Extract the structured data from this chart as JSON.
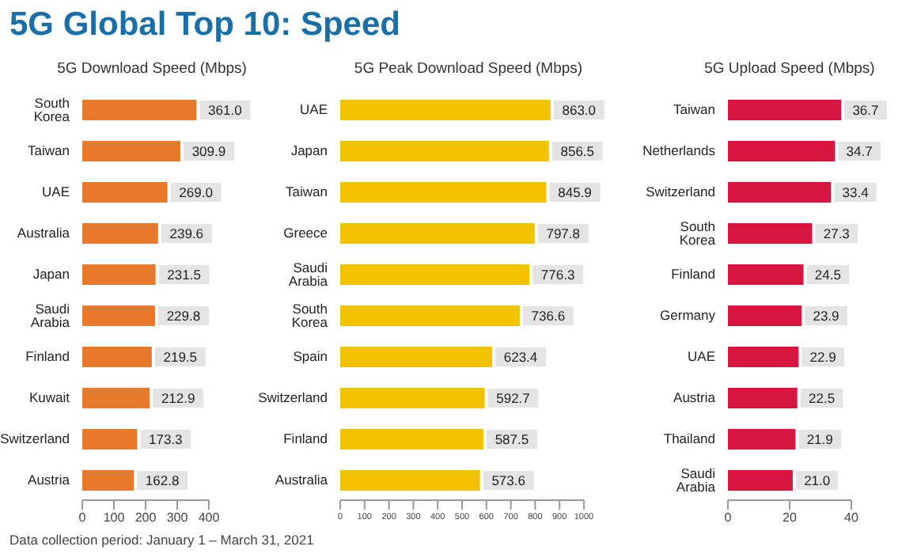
{
  "chart_data": [
    {
      "type": "bar",
      "orientation": "horizontal",
      "title": "5G Global Top 10: Speed",
      "subtitle": "5G Download Speed (Mbps)",
      "categories": [
        "South Korea",
        "Taiwan",
        "UAE",
        "Australia",
        "Japan",
        "Saudi Arabia",
        "Finland",
        "Kuwait",
        "Switzerland",
        "Austria"
      ],
      "values": [
        361.0,
        309.9,
        269.0,
        239.6,
        231.5,
        229.8,
        219.5,
        212.9,
        173.3,
        162.8
      ],
      "value_labels": [
        "361.0",
        "309.9",
        "269.0",
        "239.6",
        "231.5",
        "229.8",
        "219.5",
        "212.9",
        "173.3",
        "162.8"
      ],
      "color": "#e8782a",
      "xlim": [
        0,
        400
      ],
      "xticks": [
        0,
        100,
        200,
        300,
        400
      ],
      "annotations": [
        "Data collection period: January 1 – March 31, 2021"
      ]
    },
    {
      "type": "bar",
      "orientation": "horizontal",
      "subtitle": "5G Peak Download Speed (Mbps)",
      "categories": [
        "UAE",
        "Japan",
        "Taiwan",
        "Greece",
        "Saudi Arabia",
        "South Korea",
        "Spain",
        "Switzerland",
        "Finland",
        "Australia"
      ],
      "values": [
        863.0,
        856.5,
        845.9,
        797.8,
        776.3,
        736.6,
        623.4,
        592.7,
        587.5,
        573.6
      ],
      "value_labels": [
        "863.0",
        "856.5",
        "845.9",
        "797.8",
        "776.3",
        "736.6",
        "623.4",
        "592.7",
        "587.5",
        "573.6"
      ],
      "color": "#f2c200",
      "xlim": [
        0,
        1000
      ],
      "xticks": [
        0,
        100,
        200,
        300,
        400,
        500,
        600,
        700,
        800,
        900,
        1000
      ]
    },
    {
      "type": "bar",
      "orientation": "horizontal",
      "subtitle": "5G Upload Speed (Mbps)",
      "categories": [
        "Taiwan",
        "Netherlands",
        "Switzerland",
        "South Korea",
        "Finland",
        "Germany",
        "UAE",
        "Austria",
        "Thailand",
        "Saudi Arabia"
      ],
      "values": [
        36.7,
        34.7,
        33.4,
        27.3,
        24.5,
        23.9,
        22.9,
        22.5,
        21.9,
        21.0
      ],
      "value_labels": [
        "36.7",
        "34.7",
        "33.4",
        "27.3",
        "24.5",
        "23.9",
        "22.9",
        "22.5",
        "21.9",
        "21.0"
      ],
      "color": "#d6163f",
      "xlim": [
        0,
        40
      ],
      "xticks": [
        0,
        20,
        40
      ]
    }
  ]
}
